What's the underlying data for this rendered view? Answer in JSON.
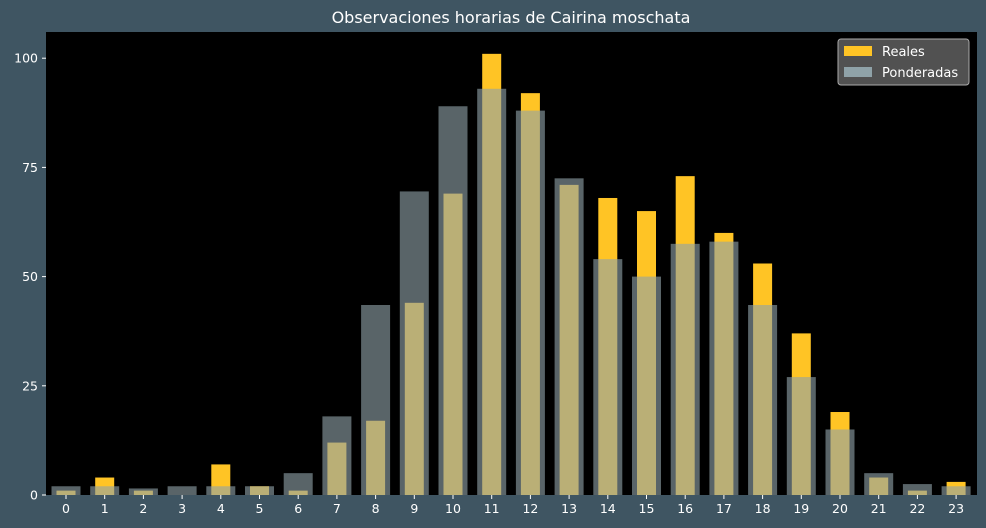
{
  "chart_data": {
    "type": "bar",
    "title": "Observaciones horarias de Cairina moschata",
    "xlabel": "",
    "ylabel": "",
    "categories": [
      "0",
      "1",
      "2",
      "3",
      "4",
      "5",
      "6",
      "7",
      "8",
      "9",
      "10",
      "11",
      "12",
      "13",
      "14",
      "15",
      "16",
      "17",
      "18",
      "19",
      "20",
      "21",
      "22",
      "23"
    ],
    "ylim": [
      0,
      106
    ],
    "yticks": [
      0,
      25,
      50,
      75,
      100
    ],
    "grid": false,
    "legend_position": "top-right",
    "series": [
      {
        "name": "Reales",
        "color": "#ffc425",
        "values": [
          1,
          4,
          1,
          0,
          7,
          2,
          1,
          12,
          17,
          44,
          69,
          101,
          92,
          71,
          68,
          65,
          73,
          60,
          53,
          37,
          19,
          4,
          1,
          3
        ]
      },
      {
        "name": "Ponderadas",
        "color": "#8fa2a8",
        "values": [
          2,
          2,
          1.5,
          2,
          2,
          2,
          5,
          18,
          43.5,
          69.5,
          89,
          93,
          88,
          72.5,
          54,
          50,
          57.5,
          58,
          43.5,
          27,
          15,
          5,
          2.5,
          2
        ]
      }
    ]
  }
}
